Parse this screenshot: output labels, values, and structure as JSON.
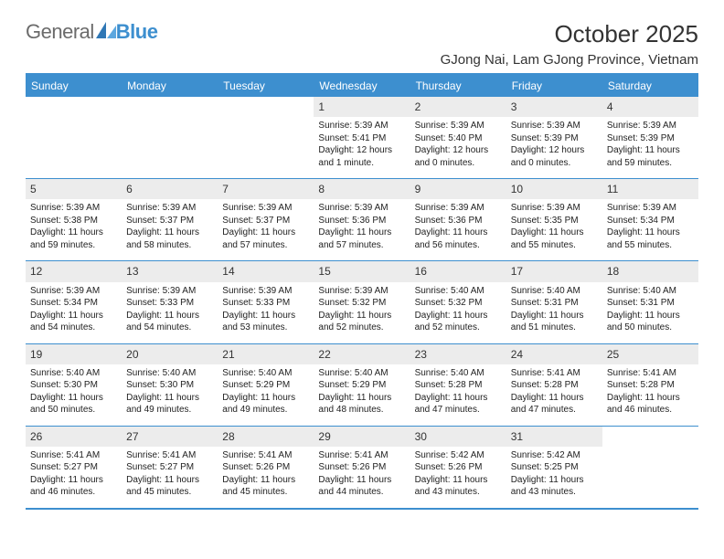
{
  "brand": {
    "part1": "General",
    "part2": "Blue"
  },
  "title": "October 2025",
  "location": "GJong Nai, Lam GJong Province, Vietnam",
  "colors": {
    "accent": "#3d8fcf",
    "daynum_bg": "#ececec",
    "text": "#2b2b2b",
    "header_text": "#ffffff",
    "background": "#ffffff"
  },
  "day_labels": [
    "Sunday",
    "Monday",
    "Tuesday",
    "Wednesday",
    "Thursday",
    "Friday",
    "Saturday"
  ],
  "weeks": [
    [
      {
        "n": "",
        "sunrise": "",
        "sunset": "",
        "daylight": ""
      },
      {
        "n": "",
        "sunrise": "",
        "sunset": "",
        "daylight": ""
      },
      {
        "n": "",
        "sunrise": "",
        "sunset": "",
        "daylight": ""
      },
      {
        "n": "1",
        "sunrise": "Sunrise: 5:39 AM",
        "sunset": "Sunset: 5:41 PM",
        "daylight": "Daylight: 12 hours and 1 minute."
      },
      {
        "n": "2",
        "sunrise": "Sunrise: 5:39 AM",
        "sunset": "Sunset: 5:40 PM",
        "daylight": "Daylight: 12 hours and 0 minutes."
      },
      {
        "n": "3",
        "sunrise": "Sunrise: 5:39 AM",
        "sunset": "Sunset: 5:39 PM",
        "daylight": "Daylight: 12 hours and 0 minutes."
      },
      {
        "n": "4",
        "sunrise": "Sunrise: 5:39 AM",
        "sunset": "Sunset: 5:39 PM",
        "daylight": "Daylight: 11 hours and 59 minutes."
      }
    ],
    [
      {
        "n": "5",
        "sunrise": "Sunrise: 5:39 AM",
        "sunset": "Sunset: 5:38 PM",
        "daylight": "Daylight: 11 hours and 59 minutes."
      },
      {
        "n": "6",
        "sunrise": "Sunrise: 5:39 AM",
        "sunset": "Sunset: 5:37 PM",
        "daylight": "Daylight: 11 hours and 58 minutes."
      },
      {
        "n": "7",
        "sunrise": "Sunrise: 5:39 AM",
        "sunset": "Sunset: 5:37 PM",
        "daylight": "Daylight: 11 hours and 57 minutes."
      },
      {
        "n": "8",
        "sunrise": "Sunrise: 5:39 AM",
        "sunset": "Sunset: 5:36 PM",
        "daylight": "Daylight: 11 hours and 57 minutes."
      },
      {
        "n": "9",
        "sunrise": "Sunrise: 5:39 AM",
        "sunset": "Sunset: 5:36 PM",
        "daylight": "Daylight: 11 hours and 56 minutes."
      },
      {
        "n": "10",
        "sunrise": "Sunrise: 5:39 AM",
        "sunset": "Sunset: 5:35 PM",
        "daylight": "Daylight: 11 hours and 55 minutes."
      },
      {
        "n": "11",
        "sunrise": "Sunrise: 5:39 AM",
        "sunset": "Sunset: 5:34 PM",
        "daylight": "Daylight: 11 hours and 55 minutes."
      }
    ],
    [
      {
        "n": "12",
        "sunrise": "Sunrise: 5:39 AM",
        "sunset": "Sunset: 5:34 PM",
        "daylight": "Daylight: 11 hours and 54 minutes."
      },
      {
        "n": "13",
        "sunrise": "Sunrise: 5:39 AM",
        "sunset": "Sunset: 5:33 PM",
        "daylight": "Daylight: 11 hours and 54 minutes."
      },
      {
        "n": "14",
        "sunrise": "Sunrise: 5:39 AM",
        "sunset": "Sunset: 5:33 PM",
        "daylight": "Daylight: 11 hours and 53 minutes."
      },
      {
        "n": "15",
        "sunrise": "Sunrise: 5:39 AM",
        "sunset": "Sunset: 5:32 PM",
        "daylight": "Daylight: 11 hours and 52 minutes."
      },
      {
        "n": "16",
        "sunrise": "Sunrise: 5:40 AM",
        "sunset": "Sunset: 5:32 PM",
        "daylight": "Daylight: 11 hours and 52 minutes."
      },
      {
        "n": "17",
        "sunrise": "Sunrise: 5:40 AM",
        "sunset": "Sunset: 5:31 PM",
        "daylight": "Daylight: 11 hours and 51 minutes."
      },
      {
        "n": "18",
        "sunrise": "Sunrise: 5:40 AM",
        "sunset": "Sunset: 5:31 PM",
        "daylight": "Daylight: 11 hours and 50 minutes."
      }
    ],
    [
      {
        "n": "19",
        "sunrise": "Sunrise: 5:40 AM",
        "sunset": "Sunset: 5:30 PM",
        "daylight": "Daylight: 11 hours and 50 minutes."
      },
      {
        "n": "20",
        "sunrise": "Sunrise: 5:40 AM",
        "sunset": "Sunset: 5:30 PM",
        "daylight": "Daylight: 11 hours and 49 minutes."
      },
      {
        "n": "21",
        "sunrise": "Sunrise: 5:40 AM",
        "sunset": "Sunset: 5:29 PM",
        "daylight": "Daylight: 11 hours and 49 minutes."
      },
      {
        "n": "22",
        "sunrise": "Sunrise: 5:40 AM",
        "sunset": "Sunset: 5:29 PM",
        "daylight": "Daylight: 11 hours and 48 minutes."
      },
      {
        "n": "23",
        "sunrise": "Sunrise: 5:40 AM",
        "sunset": "Sunset: 5:28 PM",
        "daylight": "Daylight: 11 hours and 47 minutes."
      },
      {
        "n": "24",
        "sunrise": "Sunrise: 5:41 AM",
        "sunset": "Sunset: 5:28 PM",
        "daylight": "Daylight: 11 hours and 47 minutes."
      },
      {
        "n": "25",
        "sunrise": "Sunrise: 5:41 AM",
        "sunset": "Sunset: 5:28 PM",
        "daylight": "Daylight: 11 hours and 46 minutes."
      }
    ],
    [
      {
        "n": "26",
        "sunrise": "Sunrise: 5:41 AM",
        "sunset": "Sunset: 5:27 PM",
        "daylight": "Daylight: 11 hours and 46 minutes."
      },
      {
        "n": "27",
        "sunrise": "Sunrise: 5:41 AM",
        "sunset": "Sunset: 5:27 PM",
        "daylight": "Daylight: 11 hours and 45 minutes."
      },
      {
        "n": "28",
        "sunrise": "Sunrise: 5:41 AM",
        "sunset": "Sunset: 5:26 PM",
        "daylight": "Daylight: 11 hours and 45 minutes."
      },
      {
        "n": "29",
        "sunrise": "Sunrise: 5:41 AM",
        "sunset": "Sunset: 5:26 PM",
        "daylight": "Daylight: 11 hours and 44 minutes."
      },
      {
        "n": "30",
        "sunrise": "Sunrise: 5:42 AM",
        "sunset": "Sunset: 5:26 PM",
        "daylight": "Daylight: 11 hours and 43 minutes."
      },
      {
        "n": "31",
        "sunrise": "Sunrise: 5:42 AM",
        "sunset": "Sunset: 5:25 PM",
        "daylight": "Daylight: 11 hours and 43 minutes."
      },
      {
        "n": "",
        "sunrise": "",
        "sunset": "",
        "daylight": ""
      }
    ]
  ]
}
